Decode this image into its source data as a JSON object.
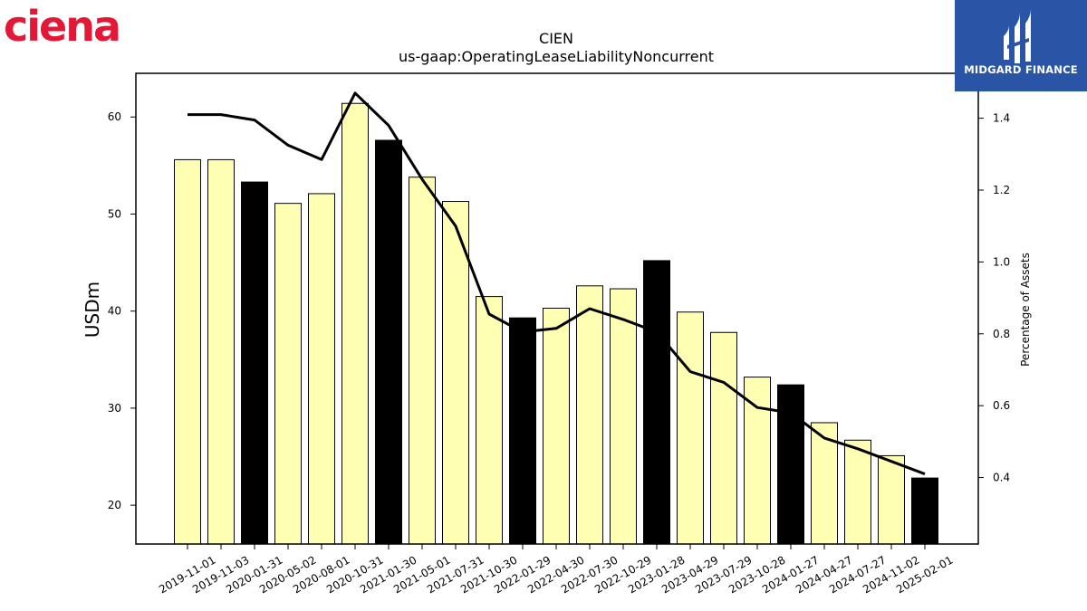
{
  "logos": {
    "left": {
      "text": "ciena",
      "color": "#e31837"
    },
    "right": {
      "text": "MIDGARD FINANCE",
      "background": "#2a55a6"
    }
  },
  "chart_data": {
    "type": "bar",
    "title": "CIEN",
    "subtitle": "us-gaap:OperatingLeaseLiabilityNoncurrent",
    "ylabel": "USDm",
    "y2label": "Percentage of Assets",
    "ylim": [
      16,
      64.5
    ],
    "y2lim": [
      0.215,
      1.525
    ],
    "yticks": [
      20,
      30,
      40,
      50,
      60
    ],
    "y2ticks": [
      0.4,
      0.6,
      0.8,
      1.0,
      1.2,
      1.4
    ],
    "categories": [
      "2019-11-01",
      "2019-11-03",
      "2020-01-31",
      "2020-05-02",
      "2020-08-01",
      "2020-10-31",
      "2021-01-30",
      "2021-05-01",
      "2021-07-31",
      "2021-10-30",
      "2022-01-29",
      "2022-04-30",
      "2022-07-30",
      "2022-10-29",
      "2023-01-28",
      "2023-04-29",
      "2023-07-29",
      "2023-10-28",
      "2024-01-27",
      "2024-04-27",
      "2024-07-27",
      "2024-11-02",
      "2025-02-01"
    ],
    "series": [
      {
        "type": "bar",
        "values": [
          55.6,
          55.6,
          53.3,
          51.1,
          52.1,
          61.4,
          57.6,
          53.8,
          51.3,
          41.5,
          39.3,
          40.3,
          42.6,
          42.3,
          45.2,
          39.9,
          37.8,
          33.2,
          32.4,
          28.5,
          26.7,
          25.1,
          22.8
        ]
      },
      {
        "type": "line",
        "axis": "right",
        "values": [
          1.41,
          1.41,
          1.395,
          1.325,
          1.285,
          1.47,
          1.38,
          1.23,
          1.1,
          0.855,
          0.805,
          0.815,
          0.87,
          0.84,
          0.805,
          0.695,
          0.665,
          0.595,
          0.58,
          0.51,
          0.48,
          0.445,
          0.41
        ]
      }
    ],
    "highlighted_categories": [
      "2020-01-31",
      "2021-01-30",
      "2022-01-29",
      "2023-01-28",
      "2024-01-27",
      "2025-02-01"
    ],
    "colors": {
      "bar": "#ffffb4",
      "highlight_bar": "#000000",
      "line": "#000000"
    }
  }
}
